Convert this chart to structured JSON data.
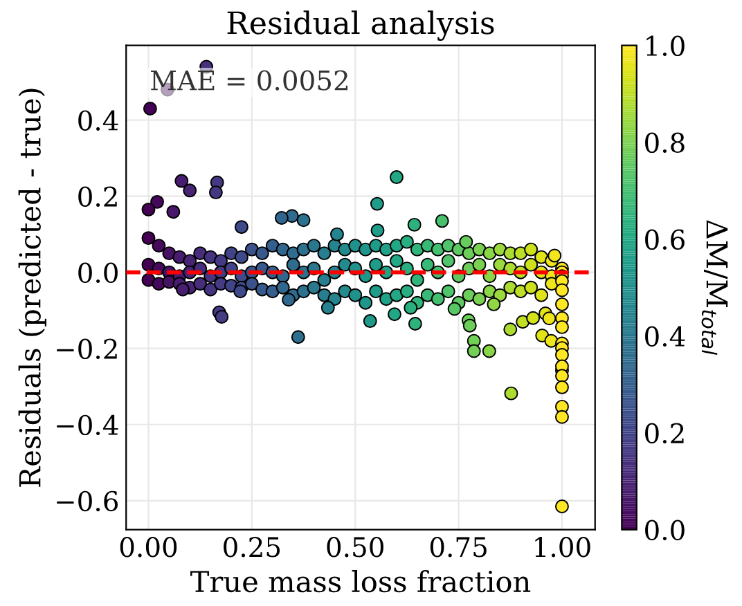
{
  "chart_data": {
    "type": "scatter",
    "title": "Residual analysis",
    "xlabel": "True mass loss fraction",
    "ylabel": "Residuals (predicted - true)",
    "clabel": "ΔM/M$_{total}$",
    "annotations": [
      "MAE = 0.0052"
    ],
    "xlim": [
      -0.054,
      1.08
    ],
    "ylim": [
      -0.676,
      0.596
    ],
    "xticks": [
      {
        "value": 0,
        "label": "0.00"
      },
      {
        "value": 0.25,
        "label": "0.25"
      },
      {
        "value": 0.5,
        "label": "0.50"
      },
      {
        "value": 0.75,
        "label": "0.75"
      },
      {
        "value": 1,
        "label": "1.00"
      }
    ],
    "yticks": [
      {
        "value": -0.6,
        "label": "−0.6"
      },
      {
        "value": -0.4,
        "label": "−0.4"
      },
      {
        "value": -0.2,
        "label": "−0.2"
      },
      {
        "value": 0,
        "label": "0.0"
      },
      {
        "value": 0.2,
        "label": "0.2"
      },
      {
        "value": 0.4,
        "label": "0.4"
      }
    ],
    "clim": [
      0,
      1
    ],
    "cticks": [
      {
        "value": 0,
        "label": "0.0"
      },
      {
        "value": 0.2,
        "label": "0.2"
      },
      {
        "value": 0.4,
        "label": "0.4"
      },
      {
        "value": 0.6,
        "label": "0.6"
      },
      {
        "value": 0.8,
        "label": "0.8"
      },
      {
        "value": 1,
        "label": "1.0"
      }
    ],
    "grid": true,
    "marker": "circle",
    "legend": false,
    "ref_lines": [
      {
        "axis": "y",
        "value": 0,
        "color": "#ff0000",
        "line_style": "dashed"
      }
    ],
    "series": [
      {
        "x": [
          0,
          0,
          0,
          0.025,
          0.025,
          0.025,
          0.05,
          0.05,
          0.05,
          0.075,
          0.075,
          0.075,
          0.1,
          0.1,
          0.1,
          0.125,
          0.125,
          0.125,
          0.15,
          0.15,
          0.15,
          0.175,
          0.175,
          0.175,
          0.2,
          0.2,
          0.2,
          0.225,
          0.225,
          0.225,
          0.25,
          0.25,
          0.25,
          0.275,
          0.275,
          0.275,
          0.3,
          0.3,
          0.3,
          0.325,
          0.325,
          0.325,
          0.35,
          0.35,
          0.35,
          0.375,
          0.375,
          0.375,
          0.4,
          0.4,
          0.4,
          0.425,
          0.425,
          0.425,
          0.45,
          0.45,
          0.45,
          0.475,
          0.475,
          0.475,
          0.5,
          0.5,
          0.5,
          0.525,
          0.525,
          0.525,
          0.55,
          0.55,
          0.55,
          0.575,
          0.575,
          0.575,
          0.6,
          0.6,
          0.6,
          0.625,
          0.625,
          0.625,
          0.65,
          0.65,
          0.65,
          0.675,
          0.675,
          0.675,
          0.7,
          0.7,
          0.7,
          0.725,
          0.725,
          0.725,
          0.75,
          0.75,
          0.75,
          0.775,
          0.775,
          0.775,
          0.8,
          0.8,
          0.8,
          0.825,
          0.825,
          0.825,
          0.85,
          0.85,
          0.85,
          0.875,
          0.875,
          0.875,
          0.9,
          0.9,
          0.9,
          0.925,
          0.925,
          0.925,
          0.95,
          0.95,
          0.95,
          0.975,
          0.975,
          0.975,
          1,
          1,
          1,
          0.004,
          0.14,
          0.046,
          0.08,
          0.1,
          0.166,
          0.163,
          0.6,
          0.553,
          0.71,
          0.643,
          0.347,
          0.322,
          0.375,
          0.225,
          0.021,
          0,
          0.06,
          0.456,
          0.554,
          0.768,
          0.982,
          0.171,
          0.177,
          0.362,
          0.536,
          0.595,
          0.645,
          0.774,
          0.777,
          0.787,
          0.787,
          0.824,
          0.877,
          0.875,
          0.905,
          0.93,
          0.952,
          0.974,
          0.96,
          0.969,
          1,
          1,
          1,
          1,
          1,
          1,
          1,
          1,
          1,
          1,
          1,
          1,
          1,
          1,
          1,
          0.083,
          0.222,
          0.339,
          0.434,
          0.634,
          0.74,
          0.835
        ],
        "values": [
          0.09,
          0.02,
          -0.02,
          0.07,
          0.01,
          -0.03,
          0.05,
          0,
          -0.025,
          0.04,
          -0.01,
          -0.03,
          0.03,
          0,
          -0.04,
          0.05,
          0.01,
          -0.03,
          0.04,
          -0.01,
          -0.045,
          0.03,
          0,
          -0.03,
          0.05,
          0.01,
          -0.035,
          0.04,
          -0.01,
          -0.04,
          0.06,
          0,
          -0.03,
          0.05,
          0.01,
          -0.045,
          0.07,
          0,
          -0.05,
          0.06,
          -0.01,
          -0.04,
          0.05,
          0.02,
          -0.06,
          0.06,
          0,
          -0.05,
          0.07,
          0.01,
          -0.04,
          0.05,
          -0.02,
          -0.06,
          0.07,
          0,
          -0.07,
          0.06,
          0.02,
          -0.05,
          0.07,
          0.01,
          -0.06,
          0.06,
          -0.01,
          -0.08,
          0.07,
          0.02,
          -0.05,
          0.06,
          0,
          -0.07,
          0.07,
          0.03,
          -0.06,
          0.08,
          0.01,
          -0.05,
          0.06,
          -0.02,
          -0.08,
          0.07,
          0.02,
          -0.06,
          0.06,
          0,
          -0.07,
          0.07,
          0.03,
          -0.05,
          0.06,
          -0.01,
          -0.08,
          0.05,
          0.01,
          -0.06,
          0.06,
          0.02,
          -0.07,
          0.05,
          -0.01,
          -0.05,
          0.06,
          0.02,
          -0.06,
          0.05,
          0.01,
          -0.04,
          0.05,
          0,
          -0.05,
          0.06,
          0.02,
          -0.04,
          0.04,
          0,
          -0.06,
          0.03,
          -0.01,
          -0.03,
          0.01,
          0,
          -0.01,
          0.43,
          0.54,
          0.48,
          0.24,
          0.215,
          0.236,
          0.21,
          0.25,
          0.18,
          0.135,
          0.125,
          0.148,
          0.143,
          0.137,
          0.119,
          0.185,
          0.165,
          0.159,
          0.1,
          0.11,
          0.08,
          0.044,
          -0.105,
          -0.117,
          -0.17,
          -0.128,
          -0.11,
          -0.135,
          -0.126,
          -0.14,
          -0.18,
          -0.207,
          -0.207,
          -0.318,
          -0.15,
          -0.13,
          -0.12,
          -0.166,
          -0.18,
          -0.108,
          -0.121,
          -0.258,
          -0.023,
          -0.047,
          -0.084,
          -0.12,
          -0.144,
          -0.187,
          -0.199,
          -0.217,
          -0.247,
          -0.272,
          -0.302,
          -0.353,
          -0.38,
          -0.615,
          -0.045,
          -0.05,
          -0.072,
          -0.093,
          -0.093,
          -0.096,
          -0.084
        ],
        "cvalues": [
          0,
          0,
          0,
          0.025,
          0.025,
          0.025,
          0.05,
          0.05,
          0.05,
          0.075,
          0.075,
          0.075,
          0.1,
          0.1,
          0.1,
          0.125,
          0.125,
          0.125,
          0.15,
          0.15,
          0.15,
          0.175,
          0.175,
          0.175,
          0.2,
          0.2,
          0.2,
          0.225,
          0.225,
          0.225,
          0.25,
          0.25,
          0.25,
          0.275,
          0.275,
          0.275,
          0.3,
          0.3,
          0.3,
          0.325,
          0.325,
          0.325,
          0.35,
          0.35,
          0.35,
          0.375,
          0.375,
          0.375,
          0.4,
          0.4,
          0.4,
          0.425,
          0.425,
          0.425,
          0.45,
          0.45,
          0.45,
          0.475,
          0.475,
          0.475,
          0.5,
          0.5,
          0.5,
          0.525,
          0.525,
          0.525,
          0.55,
          0.55,
          0.55,
          0.575,
          0.575,
          0.575,
          0.6,
          0.6,
          0.6,
          0.625,
          0.625,
          0.625,
          0.65,
          0.65,
          0.65,
          0.675,
          0.675,
          0.675,
          0.7,
          0.7,
          0.7,
          0.725,
          0.725,
          0.725,
          0.75,
          0.75,
          0.75,
          0.775,
          0.775,
          0.775,
          0.8,
          0.8,
          0.8,
          0.825,
          0.825,
          0.825,
          0.85,
          0.85,
          0.85,
          0.875,
          0.875,
          0.875,
          0.9,
          0.9,
          0.9,
          0.925,
          0.925,
          0.925,
          0.95,
          0.95,
          0.95,
          0.975,
          0.975,
          0.975,
          1,
          1,
          1,
          0.004,
          0.14,
          0.046,
          0.08,
          0.1,
          0.166,
          0.163,
          0.6,
          0.553,
          0.71,
          0.643,
          0.347,
          0.322,
          0.375,
          0.225,
          0.021,
          0,
          0.06,
          0.456,
          0.554,
          0.768,
          0.982,
          0.171,
          0.177,
          0.362,
          0.536,
          0.595,
          0.645,
          0.774,
          0.777,
          0.787,
          0.787,
          0.824,
          0.877,
          0.875,
          0.905,
          0.93,
          0.952,
          0.974,
          0.96,
          0.969,
          1,
          1,
          1,
          1,
          1,
          1,
          1,
          1,
          1,
          1,
          1,
          1,
          1,
          1,
          1,
          0.083,
          0.222,
          0.339,
          0.434,
          0.634,
          0.74,
          0.835
        ]
      }
    ]
  }
}
